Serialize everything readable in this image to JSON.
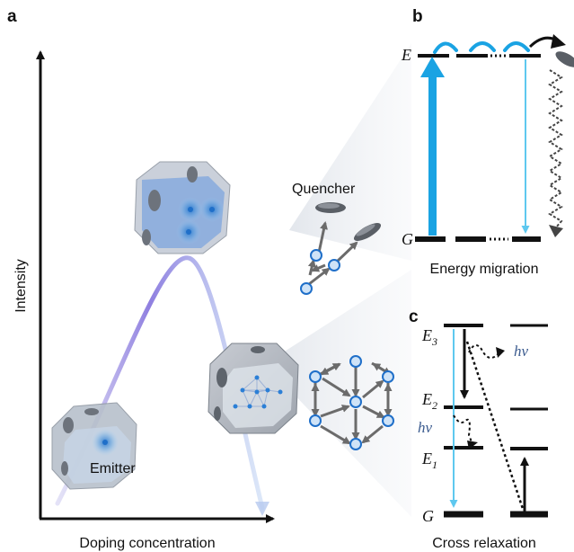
{
  "panels": {
    "a": {
      "letter": "a",
      "y_axis_label": "Intensity",
      "x_axis_label": "Doping concentration",
      "emitter_label": "Emitter",
      "quencher_label": "Quencher"
    },
    "b": {
      "letter": "b",
      "level_upper": "E",
      "level_lower": "G",
      "caption": "Energy migration"
    },
    "c": {
      "letter": "c",
      "level_e3": "E",
      "level_e3_sub": "3",
      "level_e2": "E",
      "level_e2_sub": "2",
      "level_e1": "E",
      "level_e1_sub": "1",
      "level_g": "G",
      "photon_label_1": "hν",
      "photon_label_2": "hν",
      "caption": "Cross relaxation"
    }
  },
  "colors": {
    "accent_blue": "#1aa3e3",
    "light_blue": "#5ec8ef",
    "dot_blue": "#1f6fc9",
    "curve_purple": "#8f7fe0",
    "arrow_gray": "#6b6b6b",
    "cone_gray": "#e8ebef"
  }
}
